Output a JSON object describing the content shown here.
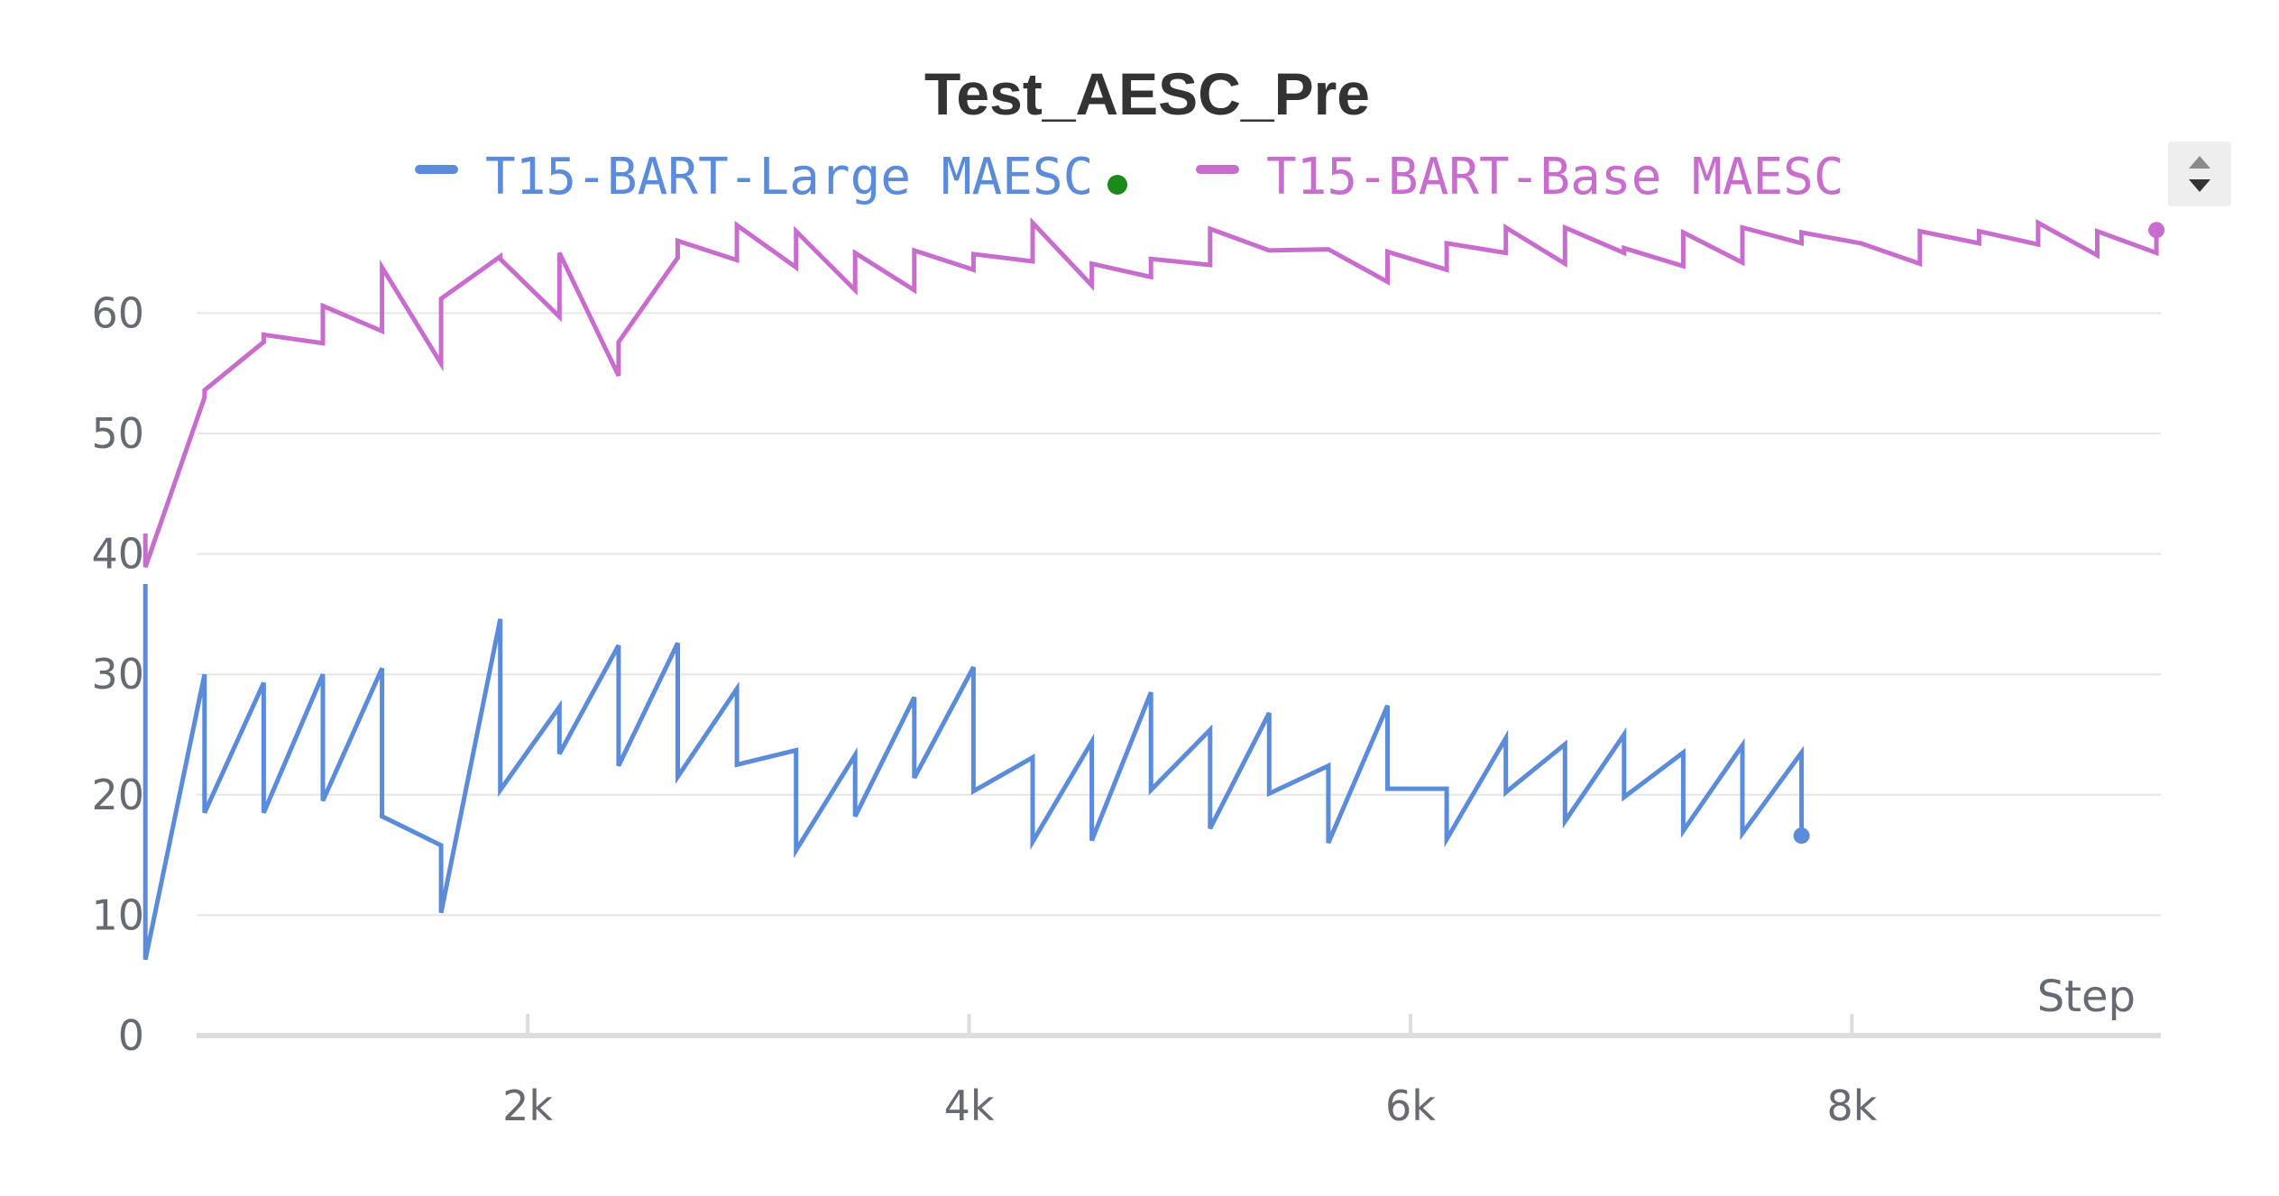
{
  "chart_data": {
    "type": "line",
    "title": "Test_AESC_Pre",
    "xlabel": "Step",
    "ylabel": "",
    "xlim": [
      0,
      9400
    ],
    "ylim": [
      0,
      67
    ],
    "x_ticks": [
      {
        "value": 2000,
        "label": "2k"
      },
      {
        "value": 4000,
        "label": "4k"
      },
      {
        "value": 6000,
        "label": "6k"
      },
      {
        "value": 8000,
        "label": "8k"
      }
    ],
    "y_ticks": [
      {
        "value": 0,
        "label": "0"
      },
      {
        "value": 10,
        "label": "10"
      },
      {
        "value": 20,
        "label": "20"
      },
      {
        "value": 30,
        "label": "30"
      },
      {
        "value": 40,
        "label": "40"
      },
      {
        "value": 50,
        "label": "50"
      },
      {
        "value": 60,
        "label": "60"
      }
    ],
    "legend_position": "top",
    "grid": true,
    "series": [
      {
        "name": "T15-BART-Large MAESC",
        "color": "#5b8bdb",
        "points": [
          [
            268,
            37.5
          ],
          [
            268,
            6.3
          ],
          [
            536,
            30
          ],
          [
            536,
            18.5
          ],
          [
            804,
            29.3
          ],
          [
            804,
            18.5
          ],
          [
            1072,
            30
          ],
          [
            1072,
            19.5
          ],
          [
            1340,
            30.5
          ],
          [
            1340,
            18.2
          ],
          [
            1608,
            15.8
          ],
          [
            1608,
            10.2
          ],
          [
            1876,
            34.6
          ],
          [
            1876,
            20.4
          ],
          [
            2144,
            27.3
          ],
          [
            2144,
            23.4
          ],
          [
            2412,
            32.4
          ],
          [
            2412,
            22.4
          ],
          [
            2680,
            32.6
          ],
          [
            2680,
            21.5
          ],
          [
            2948,
            28.8
          ],
          [
            2948,
            22.5
          ],
          [
            3216,
            23.7
          ],
          [
            3216,
            15.4
          ],
          [
            3484,
            23.3
          ],
          [
            3484,
            18.2
          ],
          [
            3752,
            28.1
          ],
          [
            3752,
            21.4
          ],
          [
            4020,
            30.6
          ],
          [
            4020,
            20.3
          ],
          [
            4288,
            23.1
          ],
          [
            4288,
            16.1
          ],
          [
            4556,
            24.4
          ],
          [
            4556,
            16.2
          ],
          [
            4824,
            28.5
          ],
          [
            4824,
            20.4
          ],
          [
            5092,
            25.4
          ],
          [
            5092,
            17.2
          ],
          [
            5360,
            26.8
          ],
          [
            5360,
            20.1
          ],
          [
            5628,
            22.4
          ],
          [
            5628,
            16
          ],
          [
            5896,
            27.4
          ],
          [
            5896,
            20.5
          ],
          [
            6164,
            20.5
          ],
          [
            6164,
            16.3
          ],
          [
            6432,
            24.7
          ],
          [
            6432,
            20.2
          ],
          [
            6700,
            24.2
          ],
          [
            6700,
            17.8
          ],
          [
            6968,
            25
          ],
          [
            6968,
            19.8
          ],
          [
            7236,
            23.5
          ],
          [
            7236,
            17
          ],
          [
            7504,
            24.1
          ],
          [
            7504,
            16.8
          ],
          [
            7772,
            23.5
          ],
          [
            7772,
            16.6
          ]
        ],
        "end_marker": true
      },
      {
        "name": "T15-BART-Base MAESC",
        "color": "#c86dce",
        "points": [
          [
            268,
            41.7
          ],
          [
            268,
            38.9
          ],
          [
            536,
            53
          ],
          [
            536,
            53.6
          ],
          [
            804,
            57.6
          ],
          [
            804,
            58.2
          ],
          [
            1072,
            57.5
          ],
          [
            1072,
            60.6
          ],
          [
            1340,
            58.5
          ],
          [
            1340,
            63.8
          ],
          [
            1608,
            55.8
          ],
          [
            1608,
            61.2
          ],
          [
            1876,
            64.7
          ],
          [
            1876,
            64.5
          ],
          [
            2144,
            59.7
          ],
          [
            2144,
            65
          ],
          [
            2412,
            54.8
          ],
          [
            2412,
            57.6
          ],
          [
            2680,
            64.6
          ],
          [
            2680,
            66
          ],
          [
            2948,
            64.4
          ],
          [
            2948,
            67.3
          ],
          [
            3216,
            63.8
          ],
          [
            3216,
            66.8
          ],
          [
            3484,
            61.9
          ],
          [
            3484,
            65
          ],
          [
            3752,
            61.9
          ],
          [
            3752,
            65.2
          ],
          [
            4020,
            63.6
          ],
          [
            4020,
            64.9
          ],
          [
            4288,
            64.3
          ],
          [
            4288,
            67.5
          ],
          [
            4556,
            62.3
          ],
          [
            4556,
            64.1
          ],
          [
            4824,
            63
          ],
          [
            4824,
            64.5
          ],
          [
            5092,
            64
          ],
          [
            5092,
            67
          ],
          [
            5360,
            65.2
          ],
          [
            5628,
            65.3
          ],
          [
            5896,
            62.6
          ],
          [
            5896,
            65.1
          ],
          [
            6164,
            63.6
          ],
          [
            6164,
            65.8
          ],
          [
            6432,
            65
          ],
          [
            6432,
            67.1
          ],
          [
            6700,
            64.1
          ],
          [
            6700,
            67.1
          ],
          [
            6968,
            65
          ],
          [
            6968,
            65.4
          ],
          [
            7236,
            63.9
          ],
          [
            7236,
            66.7
          ],
          [
            7504,
            64.2
          ],
          [
            7504,
            67.1
          ],
          [
            7772,
            65.8
          ],
          [
            7772,
            66.7
          ],
          [
            8040,
            65.8
          ],
          [
            8308,
            64.1
          ],
          [
            8308,
            66.8
          ],
          [
            8576,
            65.8
          ],
          [
            8576,
            66.8
          ],
          [
            8844,
            65.7
          ],
          [
            8844,
            67.5
          ],
          [
            9112,
            64.8
          ],
          [
            9112,
            66.8
          ],
          [
            9380,
            65
          ],
          [
            9380,
            66.9
          ]
        ],
        "end_marker": true
      }
    ],
    "legend_status_dot_color": "#1a8a1a"
  }
}
